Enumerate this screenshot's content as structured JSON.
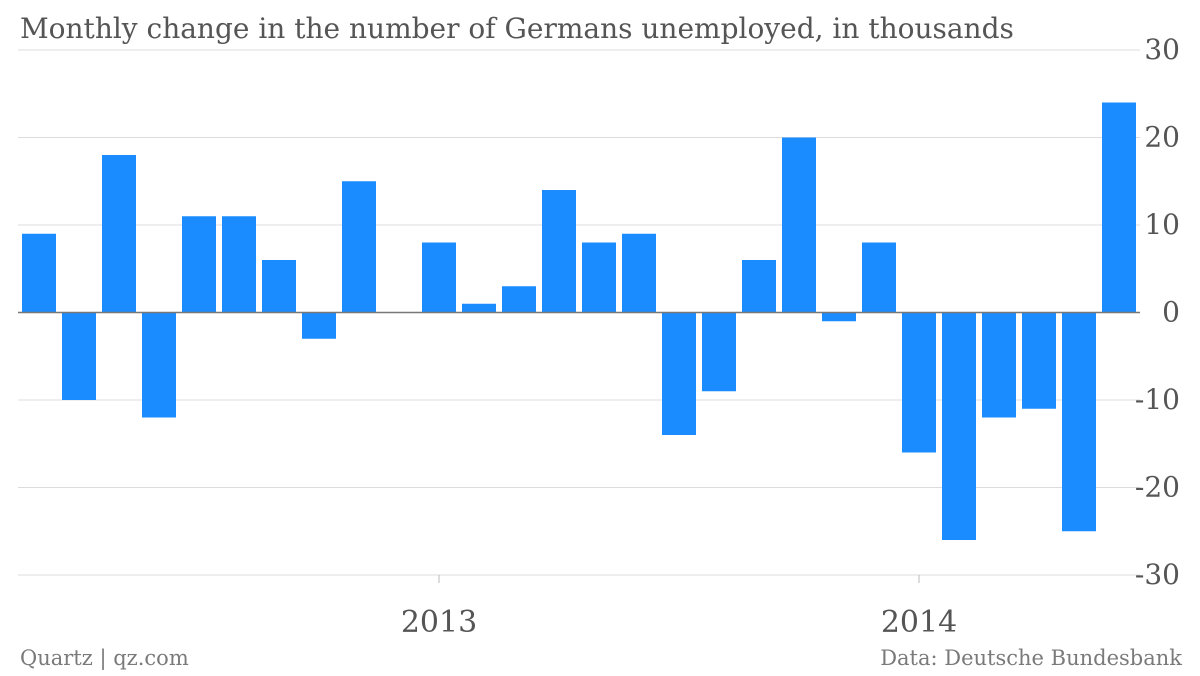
{
  "chart_data": {
    "type": "bar",
    "title": "Monthly change in the number of Germans unemployed, in thousands",
    "categories": [
      "2012-03",
      "2012-04",
      "2012-05",
      "2012-06",
      "2012-07",
      "2012-08",
      "2012-09",
      "2012-10",
      "2012-11",
      "2012-12",
      "2013-01",
      "2013-02",
      "2013-03",
      "2013-04",
      "2013-05",
      "2013-06",
      "2013-07",
      "2013-08",
      "2013-09",
      "2013-10",
      "2013-11",
      "2013-12",
      "2014-01",
      "2014-02",
      "2014-03",
      "2014-04",
      "2014-05",
      "2014-06"
    ],
    "values": [
      9,
      -10,
      18,
      -12,
      11,
      11,
      6,
      -3,
      15,
      0,
      8,
      1,
      3,
      14,
      8,
      9,
      -14,
      -9,
      6,
      20,
      -1,
      8,
      -16,
      -26,
      -12,
      -11,
      -25,
      24
    ],
    "ylim": [
      -30,
      30
    ],
    "yticks": [
      30,
      20,
      10,
      0,
      -10,
      -20,
      -30
    ],
    "xtick_labels": [
      {
        "label": "2013",
        "at": "2013-01"
      },
      {
        "label": "2014",
        "at": "2014-01"
      }
    ],
    "grid": true,
    "bar_color": "#1a8cff",
    "xlabel": "",
    "ylabel": ""
  },
  "footer": {
    "source_left": "Quartz | qz.com",
    "source_right": "Data: Deutsche Bundesbank"
  }
}
